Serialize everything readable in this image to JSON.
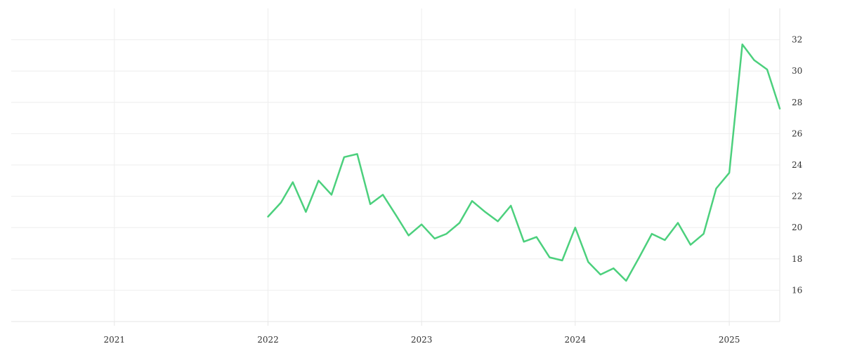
{
  "chart_data": {
    "type": "line",
    "title": "",
    "xlabel": "",
    "ylabel": "",
    "x_axis": {
      "type": "date",
      "range": [
        "2020-05-01",
        "2025-05-01"
      ],
      "tick_labels": [
        "2021",
        "2022",
        "2023",
        "2024",
        "2025"
      ],
      "tick_dates": [
        "2021-01-01",
        "2022-01-01",
        "2023-01-01",
        "2024-01-01",
        "2025-01-01"
      ],
      "grid": true
    },
    "y_axis": {
      "position": "right",
      "range": [
        14,
        34
      ],
      "ticks": [
        16,
        18,
        20,
        22,
        24,
        26,
        28,
        30,
        32
      ],
      "tick_labels": [
        "16",
        "18",
        "20",
        "22",
        "24",
        "26",
        "28",
        "30",
        "32"
      ],
      "grid": true
    },
    "legend": "none",
    "series": [
      {
        "color": "#4cd07d",
        "x": [
          "2022-01-01",
          "2022-02-01",
          "2022-03-01",
          "2022-04-01",
          "2022-05-01",
          "2022-06-01",
          "2022-07-01",
          "2022-08-01",
          "2022-09-01",
          "2022-10-01",
          "2022-11-01",
          "2022-12-01",
          "2023-01-01",
          "2023-02-01",
          "2023-03-01",
          "2023-04-01",
          "2023-05-01",
          "2023-06-01",
          "2023-07-01",
          "2023-08-01",
          "2023-09-01",
          "2023-10-01",
          "2023-11-01",
          "2023-12-01",
          "2024-01-01",
          "2024-02-01",
          "2024-03-01",
          "2024-04-01",
          "2024-05-01",
          "2024-06-01",
          "2024-07-01",
          "2024-08-01",
          "2024-09-01",
          "2024-10-01",
          "2024-11-01",
          "2024-12-01",
          "2025-01-01",
          "2025-02-01",
          "2025-03-01",
          "2025-04-01",
          "2025-05-01"
        ],
        "y": [
          20.7,
          21.6,
          22.9,
          21.0,
          23.0,
          22.1,
          24.5,
          24.7,
          21.5,
          22.1,
          20.8,
          19.5,
          20.2,
          19.3,
          19.6,
          20.3,
          21.7,
          21.0,
          20.4,
          21.4,
          19.1,
          19.4,
          18.1,
          17.9,
          20.0,
          17.8,
          17.0,
          17.4,
          16.6,
          18.1,
          19.6,
          19.2,
          20.3,
          18.9,
          19.6,
          22.5,
          23.5,
          31.7,
          30.7,
          30.1,
          27.6
        ]
      }
    ]
  }
}
